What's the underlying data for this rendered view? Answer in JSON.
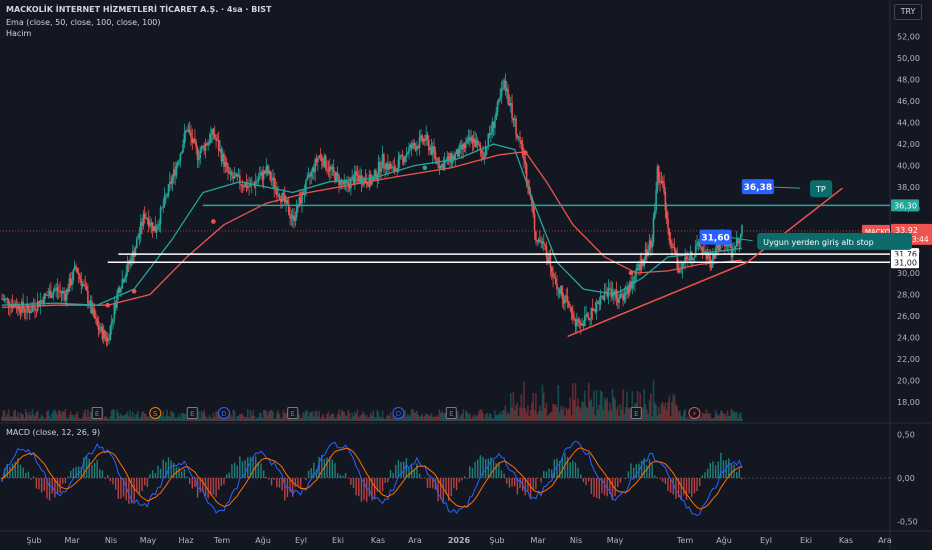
{
  "header": {
    "title": "MACKOLİK İNTERNET HİZMETLERİ TİCARET A.Ş. · 4sa · BIST",
    "ema_label": "Ema (close, 50, close, 100, close, 100)",
    "volume_label": "Hacim"
  },
  "currency_button": "TRY",
  "macd_label": "MACD (close, 12, 26, 9)",
  "colors": {
    "background": "#131722",
    "candle_up": "#26a69a",
    "candle_down": "#ef5350",
    "ema_fast": "#26a69a",
    "ema_slow": "#ef5350",
    "horizontal_lines": "#ffffff",
    "target_line": "#26a69a",
    "trendline": "#ef5350",
    "callout_blue": "#2962ff",
    "callout_teal": "#0e6b6b"
  },
  "chart_data": {
    "type": "candlestick",
    "symbol": "MACKO",
    "timeframe": "4sa",
    "x_ticks": [
      "Şub",
      "Mar",
      "Nis",
      "May",
      "Haz",
      "Tem",
      "Ağu",
      "Eyl",
      "Eki",
      "Kas",
      "Ara",
      "2026",
      "Şub",
      "Mar",
      "Nis",
      "May",
      "Tem",
      "Ağu",
      "Eyl",
      "Eki",
      "Kas",
      "Ara"
    ],
    "price_ticks": [
      "52,00",
      "50,00",
      "48,00",
      "46,00",
      "44,00",
      "42,00",
      "40,00",
      "38,00",
      "36,00",
      "34,00",
      "32,00",
      "30,00",
      "28,00",
      "26,00",
      "24,00",
      "22,00",
      "20,00",
      "18,00"
    ],
    "ylim": [
      16.5,
      53
    ],
    "price_path": [
      [
        0,
        27.6
      ],
      [
        5,
        26.5
      ],
      [
        10,
        28.5
      ],
      [
        12,
        28.0
      ],
      [
        14,
        30.5
      ],
      [
        16,
        28.0
      ],
      [
        18,
        25.0
      ],
      [
        20,
        23.8
      ],
      [
        22,
        28.5
      ],
      [
        25,
        32.0
      ],
      [
        27,
        35.5
      ],
      [
        29,
        34.0
      ],
      [
        31,
        37.0
      ],
      [
        33,
        40.0
      ],
      [
        35,
        43.5
      ],
      [
        37,
        41.0
      ],
      [
        40,
        43.0
      ],
      [
        43,
        39.0
      ],
      [
        47,
        38.0
      ],
      [
        50,
        39.5
      ],
      [
        53,
        37.0
      ],
      [
        55,
        35.0
      ],
      [
        57,
        37.5
      ],
      [
        60,
        41.0
      ],
      [
        63,
        39.0
      ],
      [
        65,
        38.0
      ],
      [
        67,
        39.0
      ],
      [
        70,
        38.5
      ],
      [
        72,
        40.5
      ],
      [
        74,
        39.5
      ],
      [
        77,
        41.5
      ],
      [
        80,
        42.5
      ],
      [
        83,
        40.0
      ],
      [
        86,
        41.0
      ],
      [
        89,
        42.5
      ],
      [
        91,
        41.0
      ],
      [
        93,
        44.0
      ],
      [
        95,
        47.5
      ],
      [
        97,
        44.0
      ],
      [
        99,
        40.0
      ],
      [
        100,
        37.0
      ],
      [
        101,
        33.5
      ],
      [
        103,
        32.0
      ],
      [
        105,
        29.0
      ],
      [
        107,
        27.0
      ],
      [
        109,
        25.0
      ],
      [
        111,
        26.0
      ],
      [
        113,
        27.5
      ],
      [
        115,
        28.5
      ],
      [
        117,
        27.5
      ],
      [
        119,
        29.0
      ],
      [
        121,
        31.0
      ],
      [
        123,
        33.0
      ],
      [
        124,
        39.5
      ],
      [
        125,
        38.0
      ],
      [
        126,
        34.0
      ],
      [
        128,
        30.5
      ],
      [
        130,
        31.5
      ],
      [
        132,
        32.5
      ],
      [
        134,
        31.0
      ],
      [
        136,
        33.0
      ],
      [
        138,
        32.0
      ],
      [
        140,
        33.9
      ]
    ],
    "price_range": [
      0,
      140
    ],
    "ema_fast": [
      [
        0,
        27.0
      ],
      [
        10,
        27.2
      ],
      [
        18,
        27.0
      ],
      [
        25,
        28.5
      ],
      [
        32,
        33.0
      ],
      [
        38,
        37.5
      ],
      [
        45,
        38.5
      ],
      [
        55,
        37.5
      ],
      [
        62,
        38.5
      ],
      [
        70,
        38.8
      ],
      [
        78,
        40.0
      ],
      [
        86,
        40.6
      ],
      [
        93,
        42.0
      ],
      [
        97,
        41.5
      ],
      [
        101,
        36.0
      ],
      [
        105,
        31.0
      ],
      [
        110,
        28.5
      ],
      [
        116,
        28.0
      ],
      [
        121,
        29.5
      ],
      [
        126,
        31.5
      ],
      [
        132,
        31.8
      ],
      [
        140,
        32.3
      ]
    ],
    "ema_slow": [
      [
        0,
        26.8
      ],
      [
        10,
        27.0
      ],
      [
        20,
        27.0
      ],
      [
        28,
        28.0
      ],
      [
        35,
        31.5
      ],
      [
        42,
        34.5
      ],
      [
        50,
        36.5
      ],
      [
        58,
        37.5
      ],
      [
        66,
        38.2
      ],
      [
        75,
        39.0
      ],
      [
        85,
        39.8
      ],
      [
        94,
        41.0
      ],
      [
        99,
        41.3
      ],
      [
        103,
        38.5
      ],
      [
        108,
        34.5
      ],
      [
        114,
        31.5
      ],
      [
        120,
        30.0
      ],
      [
        126,
        30.2
      ],
      [
        132,
        30.8
      ],
      [
        140,
        31.2
      ]
    ],
    "horizontal_levels": [
      {
        "label": "31,76",
        "value": 31.76
      },
      {
        "label": "31,00",
        "value": 31.0
      },
      {
        "label": "36,30",
        "value": 36.3
      }
    ],
    "current_price": {
      "symbol": "MACKO",
      "value": "33,92",
      "countdown": "03:03:44",
      "y": 33.92
    },
    "trendline": [
      [
        107,
        24.1
      ],
      [
        141,
        31.0
      ],
      [
        159,
        37.9
      ]
    ],
    "annotations": [
      {
        "text": "36,38",
        "kind": "price",
        "x": 143,
        "y": 38.0
      },
      {
        "text": "TP",
        "kind": "note",
        "x": 154,
        "y": 37.8
      },
      {
        "text": "31,60",
        "kind": "price",
        "x": 135,
        "y": 33.3
      },
      {
        "text": "Uygun yerden giriş altı stop",
        "kind": "note",
        "x": 144,
        "y": 32.9
      }
    ],
    "event_markers": [
      {
        "x": 18,
        "label": "E"
      },
      {
        "x": 29,
        "label": "S"
      },
      {
        "x": 36,
        "label": "E"
      },
      {
        "x": 42,
        "label": "D"
      },
      {
        "x": 55,
        "label": "E"
      },
      {
        "x": 75,
        "label": "D"
      },
      {
        "x": 85,
        "label": "E"
      },
      {
        "x": 120,
        "label": "E"
      },
      {
        "x": 131,
        "label": "⚡"
      }
    ],
    "macd_ticks": [
      "0,50",
      "0,00",
      "-0,50"
    ],
    "macd_ylim": [
      -0.6,
      0.6
    ]
  }
}
